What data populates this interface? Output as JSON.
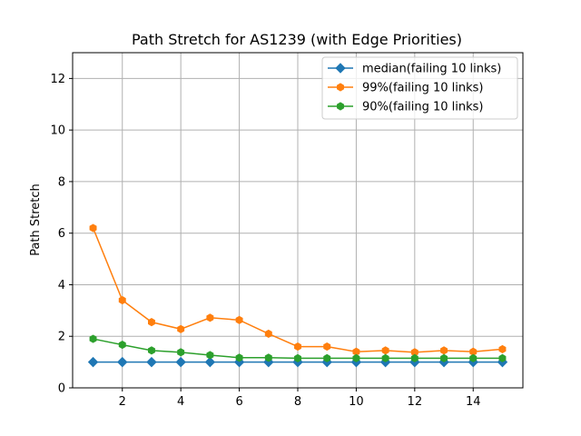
{
  "chart_data": {
    "type": "line",
    "title": "Path Stretch for AS1239 (with Edge Priorities)",
    "xlabel": "",
    "ylabel": "Path Stretch",
    "xlim": [
      0.3,
      15.7
    ],
    "ylim": [
      0,
      13
    ],
    "xticks": [
      2,
      4,
      6,
      8,
      10,
      12,
      14
    ],
    "yticks": [
      0,
      2,
      4,
      6,
      8,
      10,
      12
    ],
    "grid": true,
    "legend_position": "top-right",
    "x": [
      1,
      2,
      3,
      4,
      5,
      6,
      7,
      8,
      9,
      10,
      11,
      12,
      13,
      14,
      15
    ],
    "series": [
      {
        "name": "median(failing 10 links)",
        "color": "#1f77b4",
        "marker": "diamond",
        "values": [
          1.0,
          1.0,
          1.0,
          1.0,
          1.0,
          1.0,
          1.0,
          1.0,
          1.0,
          1.0,
          1.0,
          1.0,
          1.0,
          1.0,
          1.0
        ]
      },
      {
        "name": "99%(failing 10 links)",
        "color": "#ff7f0e",
        "marker": "hexagon",
        "values": [
          6.2,
          3.4,
          2.55,
          2.28,
          2.72,
          2.63,
          2.1,
          1.6,
          1.6,
          1.4,
          1.45,
          1.38,
          1.45,
          1.4,
          1.5
        ]
      },
      {
        "name": "90%(failing 10 links)",
        "color": "#2ca02c",
        "marker": "hexagon",
        "values": [
          1.9,
          1.67,
          1.45,
          1.38,
          1.27,
          1.17,
          1.17,
          1.15,
          1.15,
          1.15,
          1.15,
          1.15,
          1.15,
          1.15,
          1.15
        ]
      }
    ]
  }
}
